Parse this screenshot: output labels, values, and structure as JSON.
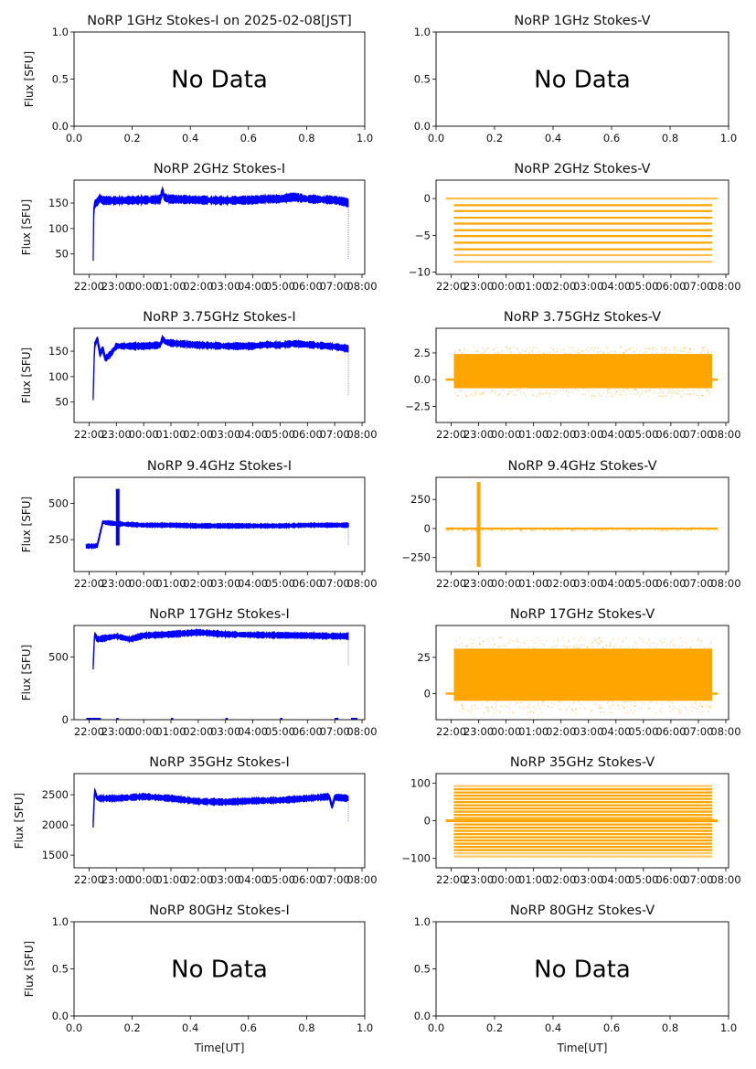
{
  "figure": {
    "date_label": "2025-02-08[JST]",
    "xlabel_bottom": "Time[UT]",
    "ylabel": "Flux [SFU]",
    "no_data_text": "No Data",
    "colors": {
      "stokes_i": "#0000ff",
      "stokes_v": "#ffa500",
      "axes": "#000000",
      "text": "#111111"
    }
  },
  "time_ticks": [
    "22:00",
    "23:00",
    "00:00",
    "01:00",
    "02:00",
    "03:00",
    "04:00",
    "05:00",
    "06:00",
    "07:00",
    "08:00"
  ],
  "chart_data": [
    {
      "id": "1ghz-i",
      "type": "scatter",
      "title": "NoRP 1GHz Stokes-I on 2025-02-08[JST]",
      "ylabel": "Flux [SFU]",
      "xlabel": "",
      "no_data": true,
      "xlim": [
        0,
        1
      ],
      "ylim": [
        0,
        1
      ],
      "xticks": [
        "0.0",
        "0.2",
        "0.4",
        "0.6",
        "0.8",
        "1.0"
      ],
      "yticks": [
        "0.0",
        "0.5",
        "1.0"
      ]
    },
    {
      "id": "1ghz-v",
      "type": "scatter",
      "title": "NoRP 1GHz Stokes-V",
      "ylabel": "",
      "xlabel": "",
      "no_data": true,
      "xlim": [
        0,
        1
      ],
      "ylim": [
        0,
        1
      ],
      "xticks": [
        "0.0",
        "0.2",
        "0.4",
        "0.6",
        "0.8",
        "1.0"
      ],
      "yticks": [
        "0.0",
        "0.5",
        "1.0"
      ]
    },
    {
      "id": "2ghz-i",
      "type": "scatter",
      "title": "NoRP 2GHz Stokes-I",
      "ylabel": "Flux [SFU]",
      "stokes": "I",
      "no_data": false,
      "xlim_hours": [
        21.45,
        32.1
      ],
      "ylim": [
        10,
        195
      ],
      "yticks": [
        50,
        100,
        150
      ],
      "series": {
        "t": [
          22.15,
          22.17,
          22.2,
          22.3,
          22.4,
          22.5,
          23,
          24,
          24.6,
          24.7,
          24.75,
          24.9,
          25.5,
          26,
          27,
          28,
          28.5,
          29,
          29.5,
          30,
          30.5,
          31,
          31.4,
          31.5
        ],
        "y": [
          40,
          130,
          148,
          152,
          160,
          155,
          155,
          156,
          157,
          175,
          162,
          158,
          157,
          156,
          155,
          156,
          158,
          158,
          162,
          158,
          157,
          156,
          152,
          150
        ]
      },
      "spread": 6,
      "end_drop": [
        31.5,
        40
      ]
    },
    {
      "id": "2ghz-v",
      "type": "scatter",
      "title": "NoRP 2GHz Stokes-V",
      "ylabel": "",
      "stokes": "V",
      "no_data": false,
      "xlim_hours": [
        21.45,
        32.1
      ],
      "ylim": [
        -10.3,
        2.5
      ],
      "yticks": [
        -10,
        -5,
        0
      ],
      "bands": [
        0,
        -0.9,
        -1.7,
        -2.6,
        -3.4,
        -4.3,
        -5.1,
        -6,
        -6.9,
        -7.7,
        -8.6
      ],
      "band_range": [
        22.1,
        31.5
      ],
      "zero_range": [
        21.8,
        31.7
      ]
    },
    {
      "id": "375ghz-i",
      "type": "scatter",
      "title": "NoRP 3.75GHz Stokes-I",
      "ylabel": "Flux [SFU]",
      "stokes": "I",
      "no_data": false,
      "xlim_hours": [
        21.45,
        32.1
      ],
      "ylim": [
        10,
        195
      ],
      "yticks": [
        50,
        100,
        150
      ],
      "series": {
        "t": [
          22.15,
          22.2,
          22.3,
          22.4,
          22.5,
          22.6,
          22.8,
          23,
          24,
          24.6,
          24.7,
          24.8,
          25,
          26,
          27,
          28,
          28.5,
          29,
          29.5,
          30,
          31,
          31.5
        ],
        "y": [
          60,
          160,
          175,
          145,
          155,
          135,
          145,
          160,
          160,
          162,
          175,
          168,
          166,
          162,
          160,
          160,
          163,
          162,
          165,
          163,
          159,
          155
        ]
      },
      "spread": 5,
      "end_drop": [
        31.5,
        62
      ]
    },
    {
      "id": "375ghz-v",
      "type": "scatter",
      "title": "NoRP 3.75GHz Stokes-V",
      "ylabel": "",
      "stokes": "V",
      "no_data": false,
      "xlim_hours": [
        21.45,
        32.1
      ],
      "ylim": [
        -4,
        4.8
      ],
      "yticks": [
        -2.5,
        0.0,
        2.5
      ],
      "noise": {
        "center": 0.8,
        "half": 1.6,
        "range": [
          22.1,
          31.5
        ]
      },
      "zero_range": [
        21.8,
        31.7
      ]
    },
    {
      "id": "94ghz-i",
      "type": "scatter",
      "title": "NoRP 9.4GHz Stokes-I",
      "ylabel": "Flux [SFU]",
      "stokes": "I",
      "no_data": false,
      "xlim_hours": [
        21.45,
        32.1
      ],
      "ylim": [
        30,
        680
      ],
      "yticks": [
        250,
        500
      ],
      "series": {
        "t": [
          21.9,
          22.2,
          22.3,
          22.5,
          23,
          24,
          25,
          26,
          27,
          28,
          29,
          30,
          31,
          31.5
        ],
        "y": [
          205,
          205,
          210,
          370,
          360,
          350,
          350,
          345,
          345,
          345,
          345,
          350,
          350,
          350
        ]
      },
      "spread": 12,
      "burst": [
        23.05,
        600,
        210
      ],
      "end_drop": [
        31.5,
        210
      ]
    },
    {
      "id": "94ghz-v",
      "type": "scatter",
      "title": "NoRP 9.4GHz Stokes-V",
      "ylabel": "",
      "stokes": "V",
      "no_data": false,
      "xlim_hours": [
        21.45,
        32.1
      ],
      "ylim": [
        -370,
        440
      ],
      "yticks": [
        -250,
        0,
        250
      ],
      "noise": {
        "center": 0,
        "half": 8,
        "range": [
          21.8,
          31.7
        ]
      },
      "burst": [
        23.0,
        400,
        -330
      ]
    },
    {
      "id": "17ghz-i",
      "type": "scatter",
      "title": "NoRP 17GHz Stokes-I",
      "ylabel": "Flux [SFU]",
      "stokes": "I",
      "no_data": false,
      "xlim_hours": [
        21.45,
        32.1
      ],
      "ylim": [
        0,
        750
      ],
      "yticks": [
        0,
        500
      ],
      "series": {
        "t": [
          22.15,
          22.2,
          22.3,
          22.6,
          23,
          23.5,
          24,
          25,
          26,
          27,
          28,
          29,
          30,
          31,
          31.5
        ],
        "y": [
          420,
          680,
          640,
          650,
          665,
          640,
          670,
          680,
          695,
          680,
          675,
          672,
          670,
          665,
          665
        ]
      },
      "spread": 18,
      "end_drop": [
        31.5,
        430
      ]
    },
    {
      "id": "17ghz-v",
      "type": "scatter",
      "title": "NoRP 17GHz Stokes-V",
      "ylabel": "",
      "stokes": "V",
      "no_data": false,
      "xlim_hours": [
        21.45,
        32.1
      ],
      "ylim": [
        -18,
        47
      ],
      "yticks": [
        0,
        25
      ],
      "noise": {
        "center": 13,
        "half": 18,
        "range": [
          22.1,
          31.5
        ]
      },
      "zero_range": [
        21.8,
        31.7
      ]
    },
    {
      "id": "35ghz-i",
      "type": "scatter",
      "title": "NoRP 35GHz Stokes-I",
      "ylabel": "Flux [SFU]",
      "stokes": "I",
      "no_data": false,
      "xlim_hours": [
        21.45,
        32.1
      ],
      "ylim": [
        1290,
        2850
      ],
      "yticks": [
        1500,
        2000,
        2500
      ],
      "series": {
        "t": [
          22.15,
          22.2,
          22.3,
          23,
          24,
          25,
          26,
          27,
          28,
          29,
          30,
          30.8,
          30.9,
          31,
          31.5
        ],
        "y": [
          2010,
          2560,
          2440,
          2440,
          2470,
          2440,
          2390,
          2380,
          2400,
          2410,
          2440,
          2470,
          2300,
          2460,
          2440
        ]
      },
      "spread": 40,
      "end_drop": [
        31.5,
        2050
      ]
    },
    {
      "id": "35ghz-v",
      "type": "scatter",
      "title": "NoRP 35GHz Stokes-V",
      "ylabel": "",
      "stokes": "V",
      "no_data": false,
      "xlim_hours": [
        21.45,
        32.1
      ],
      "ylim": [
        -125,
        125
      ],
      "yticks": [
        -100,
        0,
        100
      ],
      "bands_step": 8.5,
      "band_half": 95,
      "band_range": [
        22.1,
        31.5
      ],
      "zero_range": [
        21.8,
        31.7
      ]
    },
    {
      "id": "80ghz-i",
      "type": "scatter",
      "title": "NoRP 80GHz Stokes-I",
      "ylabel": "Flux [SFU]",
      "xlabel": "Time[UT]",
      "no_data": true,
      "xlim": [
        0,
        1
      ],
      "ylim": [
        0,
        1
      ],
      "xticks": [
        "0.0",
        "0.2",
        "0.4",
        "0.6",
        "0.8",
        "1.0"
      ],
      "yticks": [
        "0.0",
        "0.5",
        "1.0"
      ]
    },
    {
      "id": "80ghz-v",
      "type": "scatter",
      "title": "NoRP 80GHz Stokes-V",
      "ylabel": "",
      "xlabel": "Time[UT]",
      "no_data": true,
      "xlim": [
        0,
        1
      ],
      "ylim": [
        0,
        1
      ],
      "xticks": [
        "0.0",
        "0.2",
        "0.4",
        "0.6",
        "0.8",
        "1.0"
      ],
      "yticks": [
        "0.0",
        "0.5",
        "1.0"
      ]
    }
  ]
}
